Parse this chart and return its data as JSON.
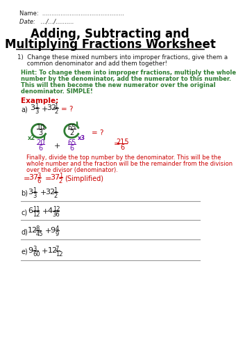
{
  "title_line1": "Adding, Subtracting and",
  "title_line2": "Multiplying Fractions Worksheet",
  "name_line": "Name:  .............................................",
  "date_line": "Date:   .../.../..........",
  "q1_line1": "1)  Change these mixed numbers into improper fractions, give them a",
  "q1_line2": "     common denominator and add them together!",
  "hint_lines": [
    "Hint: To change them into improper fractions, multiply the whole",
    "number by the denominator, add the numerator to this number.",
    "This will then become the new numerator over the original",
    "denominator. SIMPLE!"
  ],
  "final_lines": [
    "Finally, divide the top number by the denominator. This will be the",
    "whole number and the fraction will be the remainder from the division",
    "over the divisor (denominator)."
  ],
  "bg_color": "#ffffff",
  "title_color": "#000000",
  "hint_color": "#2e7d32",
  "example_color": "#cc0000",
  "red_color": "#cc0000",
  "black_color": "#1a1a1a",
  "green_color": "#2e7d32",
  "purple_color": "#6a0dad",
  "line_color": "#999999"
}
